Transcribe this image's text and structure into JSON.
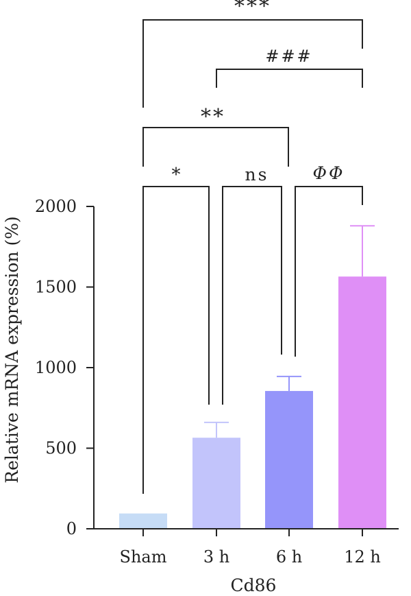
{
  "chart_data": {
    "type": "bar",
    "categories": [
      "Sham",
      "3 h",
      "6 h",
      "12 h"
    ],
    "values": [
      95,
      565,
      855,
      1565
    ],
    "errors": [
      0,
      95,
      90,
      315
    ],
    "colors": [
      "#c6dcf6",
      "#c2c4fb",
      "#9595fa",
      "#df8ff6"
    ],
    "xlabel": "Cd86",
    "ylabel": "Relative mRNA expression (%)",
    "ylim": [
      0,
      2000
    ],
    "yticks": [
      0,
      500,
      1000,
      1500,
      2000
    ],
    "significance": [
      {
        "from": 0,
        "to": 1,
        "label": "*"
      },
      {
        "from": 1,
        "to": 2,
        "label": "ns"
      },
      {
        "from": 2,
        "to": 3,
        "label": "ΦΦ"
      },
      {
        "from": 0,
        "to": 2,
        "label": "**"
      },
      {
        "from": 1,
        "to": 3,
        "label": "###"
      },
      {
        "from": 0,
        "to": 3,
        "label": "***"
      }
    ]
  }
}
